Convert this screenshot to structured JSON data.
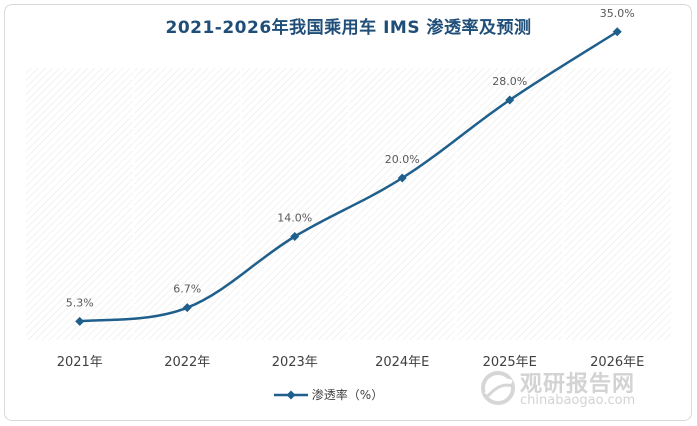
{
  "chart_data": {
    "type": "line",
    "title": "2021-2026年我国乘用车 IMS 渗透率及预测",
    "categories": [
      "2021年",
      "2022年",
      "2023年",
      "2024年E",
      "2025年E",
      "2026年E"
    ],
    "series": [
      {
        "name": "渗透率（%）",
        "values": [
          5.3,
          6.7,
          14.0,
          20.0,
          28.0,
          35.0
        ],
        "labels": [
          "5.3%",
          "6.7%",
          "14.0%",
          "20.0%",
          "28.0%",
          "35.0%"
        ]
      }
    ],
    "ylim": [
      0,
      40
    ],
    "grid": false,
    "legend": "bottom",
    "colors": {
      "line": "#1f5f8b",
      "title": "#1f4e79"
    }
  },
  "watermark": {
    "cn": "观研报告网",
    "en": "chinabaogao.com"
  }
}
